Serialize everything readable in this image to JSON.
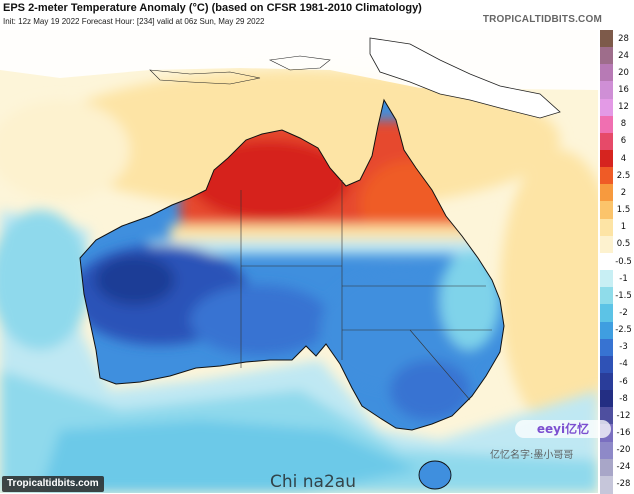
{
  "header": {
    "title": "EPS 2-meter Temperature Anomaly (°C) (based on CFSR 1981-2010 Climatology)",
    "subtitle": "Init: 12z May 19 2022   Forecast Hour: [234]   valid at 06z Sun, May 29 2022",
    "brand": "TROPICALTIDBITS.COM"
  },
  "footer": {
    "brand": "Tropicaltidbits.com"
  },
  "watermarks": {
    "pill": "eeyi亿忆",
    "author": "亿忆名字:墨小哥哥",
    "bottom": "Chi na2au"
  },
  "colorbar": {
    "labels": [
      "28",
      "24",
      "20",
      "16",
      "12",
      "8",
      "6",
      "4",
      "2.5",
      "2",
      "1.5",
      "1",
      "0.5",
      "-0.5",
      "-1",
      "-1.5",
      "-2",
      "-2.5",
      "-3",
      "-4",
      "-6",
      "-8",
      "-12",
      "-16",
      "-20",
      "-24",
      "-28"
    ],
    "colors": [
      "#7d5a4a",
      "#9e6d8b",
      "#b77ab5",
      "#cf8fd6",
      "#e39ae6",
      "#f06fb1",
      "#e64a69",
      "#d6241f",
      "#ef5b26",
      "#f79a3e",
      "#fbc46b",
      "#fde4a5",
      "#fdf2cf",
      "#ffffff",
      "#c8eff4",
      "#8fdcea",
      "#5cc3e6",
      "#3f9ee0",
      "#3773d2",
      "#2f52b6",
      "#2a3d9a",
      "#232e83",
      "#4e4f9f",
      "#7a6fc0",
      "#8e89c8",
      "#a8a6c8",
      "#c6c6da"
    ]
  },
  "map": {
    "region": "Australia",
    "colors": {
      "ocean_neutral": "#fdf5d9",
      "warm_light": "#fde4a5",
      "warm_orange": "#f79a3e",
      "hot_red": "#e64a2e",
      "cold_light": "#bfe8f3",
      "cold_cyan": "#7fd3ea",
      "cold_blue": "#3f8fde",
      "cold_deep": "#2a52b8",
      "cold_darkest": "#1f3d96"
    }
  }
}
